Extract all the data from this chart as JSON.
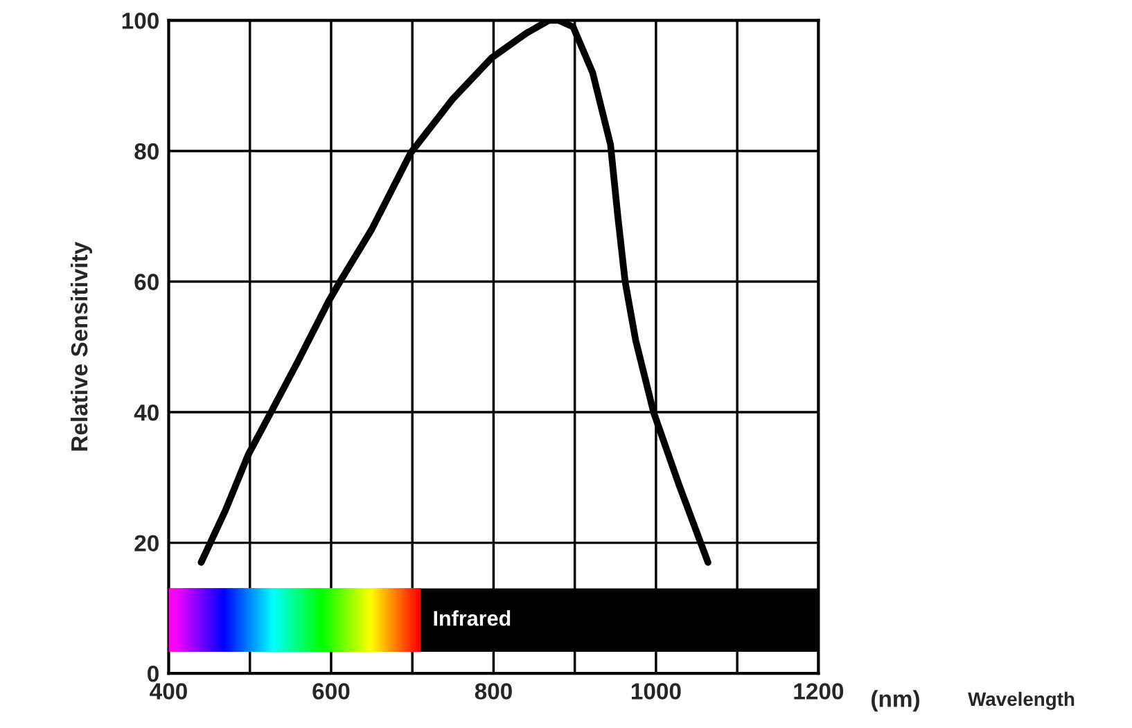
{
  "chart_data": {
    "type": "line",
    "ylabel": "Relative Sensitivity",
    "annotations": [
      "(nm)",
      "Wavelength"
    ],
    "series": [
      {
        "color": "#000000",
        "x": [
          440,
          470,
          498,
          526,
          560,
          597,
          611,
          650,
          698,
          750,
          798,
          840,
          868,
          880,
          898,
          922,
          944,
          953,
          962,
          975,
          997,
          1028,
          1064
        ],
        "values": [
          17,
          25,
          33.5,
          40,
          48,
          57,
          60,
          68,
          79.7,
          88,
          94.3,
          98,
          100,
          100,
          99,
          92,
          81,
          70,
          60,
          51,
          40,
          29,
          17
        ]
      }
    ],
    "bands": [
      {
        "axis": "x",
        "from": 710,
        "to": 1200,
        "label": "Infrared",
        "color": "#000000"
      }
    ],
    "xlim": [
      400,
      1200
    ],
    "xticks": [
      400,
      600,
      800,
      1000,
      1200
    ],
    "ylim": [
      0,
      100
    ],
    "yticks": [
      0,
      20,
      40,
      60,
      80,
      100
    ],
    "grid": true,
    "marker": "none",
    "line_style": "solid",
    "legend": false
  }
}
